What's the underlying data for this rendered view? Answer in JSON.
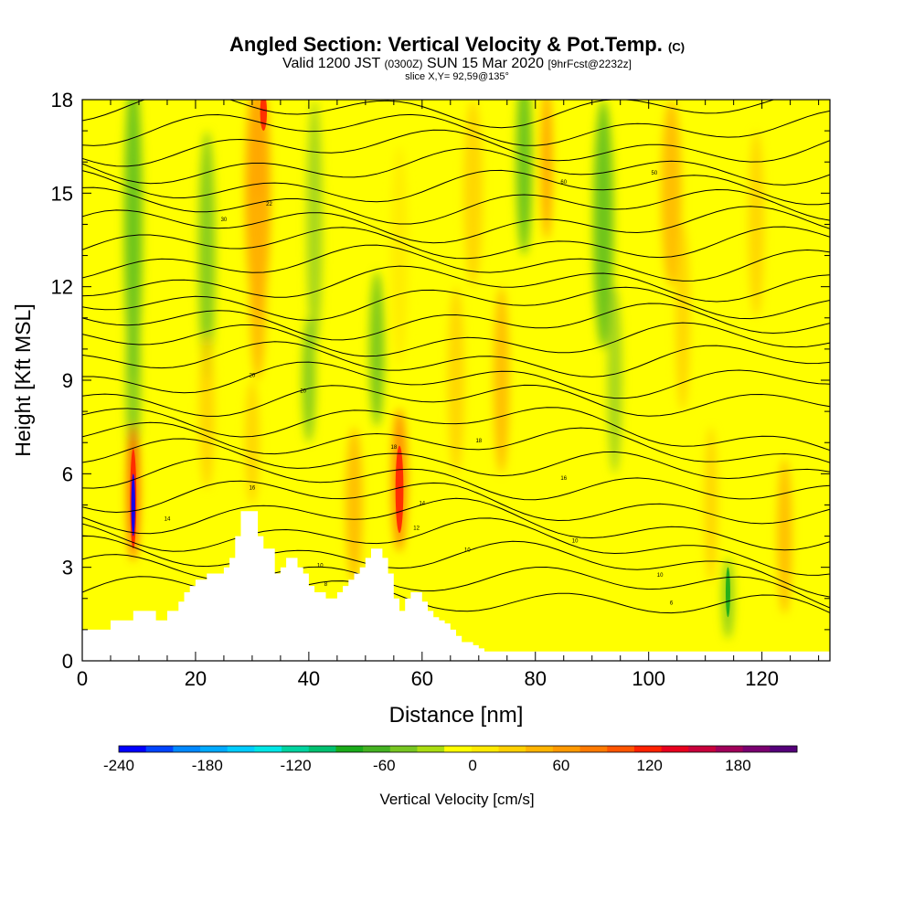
{
  "header": {
    "title": "Angled Section: Vertical Velocity & Pot.Temp.",
    "title_tag": "(C)",
    "valid_main": "Valid 1200 JST",
    "valid_small": "(0300Z)",
    "valid_date": "SUN 15 Mar 2020",
    "forecast": "[9hrFcst@2232z]",
    "slice": "slice X,Y= 92,59@135°"
  },
  "chart_data": {
    "type": "heatmap",
    "xlabel": "Distance [nm]",
    "ylabel": "Height [Kft MSL]",
    "xlim": [
      0,
      132
    ],
    "ylim": [
      0,
      18
    ],
    "x_ticks": [
      "0",
      "20",
      "40",
      "60",
      "80",
      "100",
      "120"
    ],
    "y_ticks": [
      "0",
      "3",
      "6",
      "9",
      "12",
      "15",
      "18"
    ],
    "colorbar": {
      "label": "Vertical Velocity [cm/s]",
      "ticks": [
        "-240",
        "-180",
        "-120",
        "-60",
        "0",
        "60",
        "120",
        "180"
      ],
      "min": -240,
      "max": 220,
      "colors": [
        "#0000ff",
        "#0044ff",
        "#0088ff",
        "#00aaff",
        "#00ccff",
        "#00e6e6",
        "#00d4a0",
        "#00c070",
        "#1aab1a",
        "#44b222",
        "#77c622",
        "#aadd11",
        "#ffff00",
        "#ffea00",
        "#ffd000",
        "#ffb400",
        "#ff9900",
        "#ff7a00",
        "#ff5500",
        "#ff2200",
        "#e8001e",
        "#c8003c",
        "#a0005a",
        "#7a0070",
        "#55007a"
      ]
    },
    "terrain_profile_kft": [
      [
        0,
        1.0
      ],
      [
        1,
        1.0
      ],
      [
        2,
        1.0
      ],
      [
        3,
        1.0
      ],
      [
        4,
        1.0
      ],
      [
        5,
        1.3
      ],
      [
        6,
        1.3
      ],
      [
        7,
        1.3
      ],
      [
        8,
        1.3
      ],
      [
        9,
        1.6
      ],
      [
        10,
        1.6
      ],
      [
        11,
        1.6
      ],
      [
        12,
        1.6
      ],
      [
        13,
        1.3
      ],
      [
        14,
        1.3
      ],
      [
        15,
        1.6
      ],
      [
        16,
        1.6
      ],
      [
        17,
        1.9
      ],
      [
        18,
        2.2
      ],
      [
        19,
        2.4
      ],
      [
        20,
        2.6
      ],
      [
        21,
        2.6
      ],
      [
        22,
        2.8
      ],
      [
        23,
        2.8
      ],
      [
        24,
        2.8
      ],
      [
        25,
        3.0
      ],
      [
        26,
        3.3
      ],
      [
        27,
        4.0
      ],
      [
        28,
        4.8
      ],
      [
        29,
        4.8
      ],
      [
        30,
        4.8
      ],
      [
        31,
        4.0
      ],
      [
        32,
        3.6
      ],
      [
        33,
        3.6
      ],
      [
        34,
        2.8
      ],
      [
        35,
        3.0
      ],
      [
        36,
        3.3
      ],
      [
        37,
        3.3
      ],
      [
        38,
        3.0
      ],
      [
        39,
        2.8
      ],
      [
        40,
        2.4
      ],
      [
        41,
        2.2
      ],
      [
        42,
        2.2
      ],
      [
        43,
        2.0
      ],
      [
        44,
        2.0
      ],
      [
        45,
        2.2
      ],
      [
        46,
        2.4
      ],
      [
        47,
        2.6
      ],
      [
        48,
        2.8
      ],
      [
        49,
        3.0
      ],
      [
        50,
        3.3
      ],
      [
        51,
        3.6
      ],
      [
        52,
        3.6
      ],
      [
        53,
        3.3
      ],
      [
        54,
        2.8
      ],
      [
        55,
        2.0
      ],
      [
        56,
        1.6
      ],
      [
        57,
        2.0
      ],
      [
        58,
        2.2
      ],
      [
        59,
        2.2
      ],
      [
        60,
        1.9
      ],
      [
        61,
        1.6
      ],
      [
        62,
        1.4
      ],
      [
        63,
        1.3
      ],
      [
        64,
        1.2
      ],
      [
        65,
        1.0
      ],
      [
        66,
        0.8
      ],
      [
        67,
        0.6
      ],
      [
        68,
        0.6
      ],
      [
        69,
        0.5
      ],
      [
        70,
        0.4
      ],
      [
        71,
        0.3
      ],
      [
        132,
        0.3
      ]
    ],
    "theta_contour_labels": [
      "6",
      "8",
      "10",
      "10",
      "10",
      "10",
      "12",
      "14",
      "14",
      "16",
      "16",
      "18",
      "18",
      "20",
      "20",
      "22",
      "30",
      "50",
      "60"
    ]
  }
}
